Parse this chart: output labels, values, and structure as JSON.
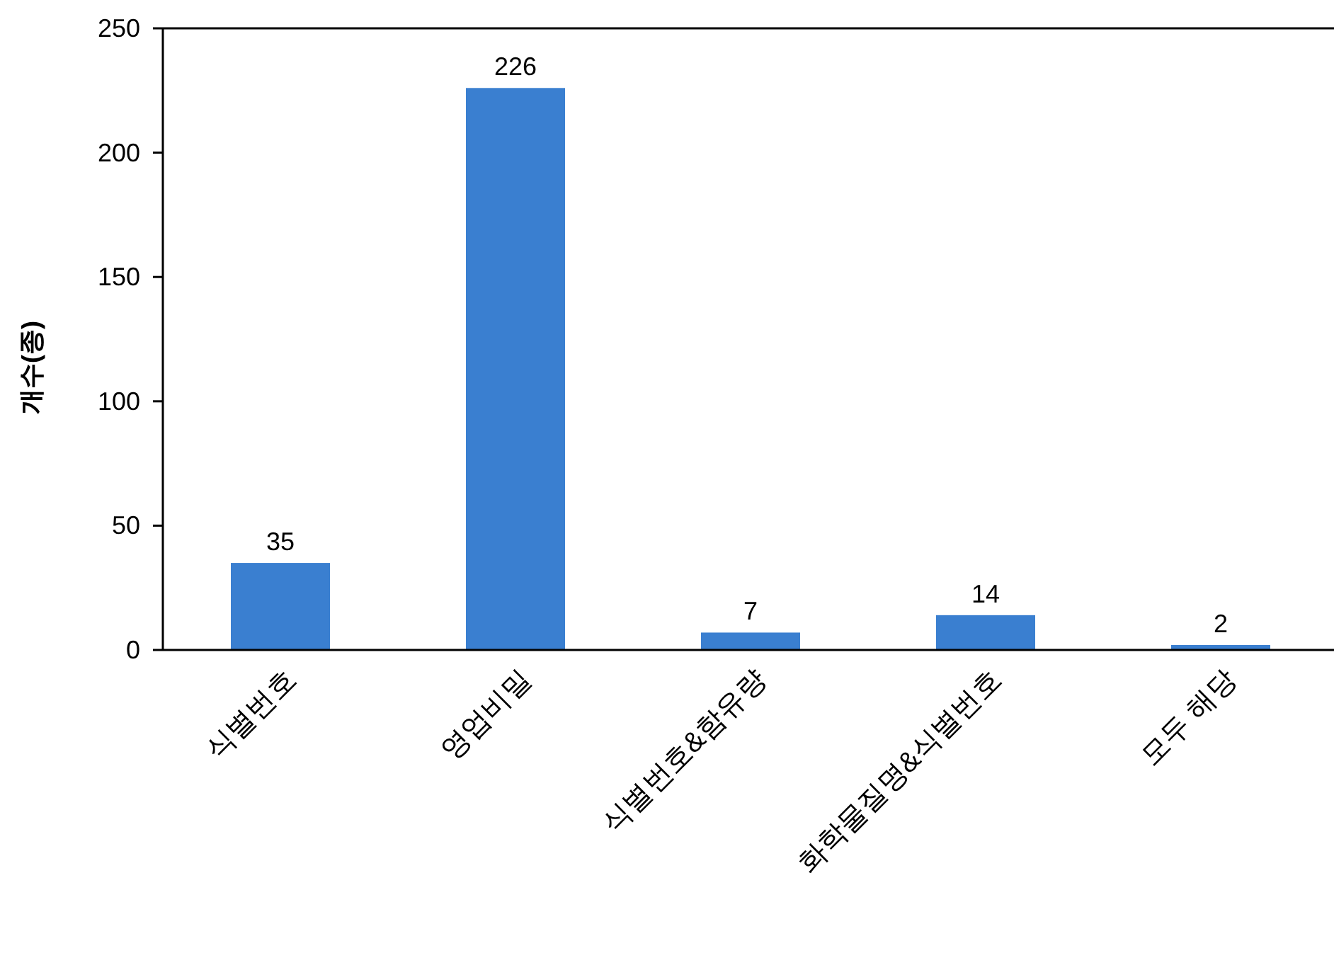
{
  "chart_data": {
    "type": "bar",
    "ylabel": "개수(종)",
    "categories": [
      "식별번호",
      "영업비밀",
      "식별번호&함유량",
      "화학물질명&식별번호",
      "모두 해당"
    ],
    "values": [
      35,
      226,
      7,
      14,
      2
    ],
    "color": "#3a7fd0",
    "ylim": [
      0,
      250
    ],
    "yticks": [
      0,
      50,
      100,
      150,
      200,
      250
    ],
    "data_labels": true
  }
}
